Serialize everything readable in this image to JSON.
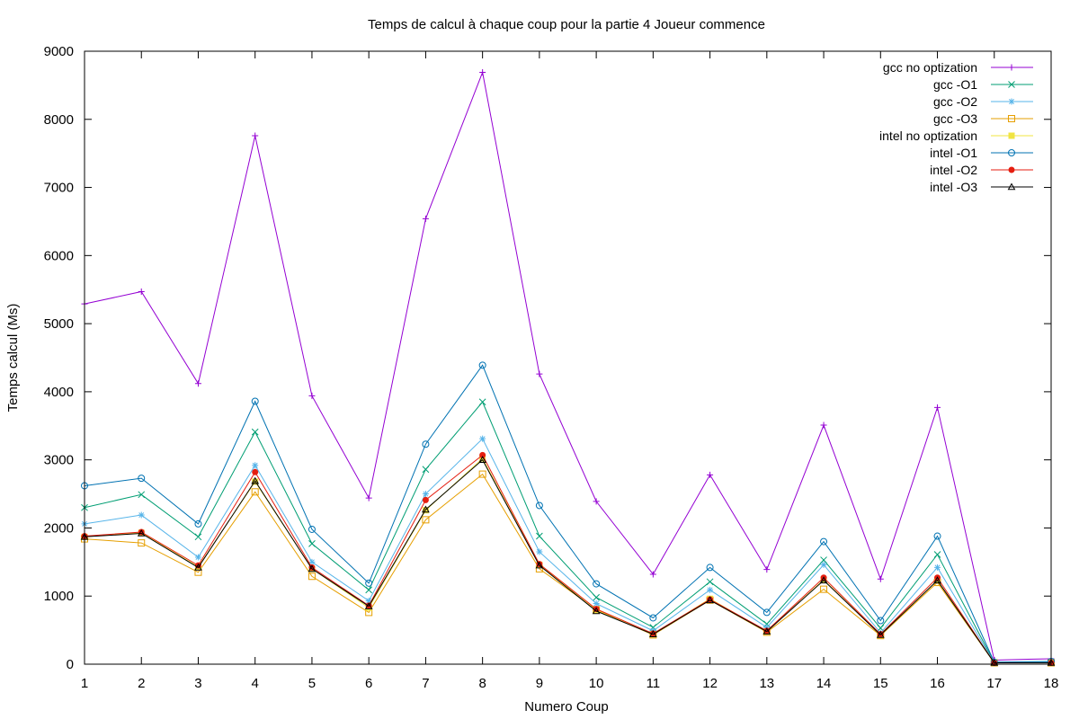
{
  "chart_data": {
    "type": "line",
    "title": "Temps de calcul à chaque coup pour la partie 4 Joueur commence",
    "xlabel": "Numero Coup",
    "ylabel": "Temps calcul (Ms)",
    "xlim": [
      1,
      18
    ],
    "ylim": [
      0,
      9000
    ],
    "x": [
      1,
      2,
      3,
      4,
      5,
      6,
      7,
      8,
      9,
      10,
      11,
      12,
      13,
      14,
      15,
      16,
      17,
      18
    ],
    "yticks": [
      0,
      1000,
      2000,
      3000,
      4000,
      5000,
      6000,
      7000,
      8000,
      9000
    ],
    "grid": false,
    "legend_position": "top-right",
    "series": [
      {
        "name": "gcc no optization",
        "color": "#9400d3",
        "marker": "plus",
        "values": [
          5290,
          5470,
          4120,
          7760,
          3940,
          2440,
          6540,
          8690,
          4260,
          2390,
          1320,
          2780,
          1390,
          3510,
          1250,
          3770,
          60,
          80
        ]
      },
      {
        "name": "gcc -O1",
        "color": "#009e73",
        "marker": "cross",
        "values": [
          2300,
          2490,
          1870,
          3410,
          1770,
          1090,
          2860,
          3850,
          1880,
          980,
          540,
          1210,
          590,
          1530,
          530,
          1610,
          25,
          30
        ]
      },
      {
        "name": "gcc -O2",
        "color": "#56b4e9",
        "marker": "asterisk",
        "values": [
          2060,
          2190,
          1570,
          2920,
          1500,
          930,
          2500,
          3310,
          1650,
          890,
          490,
          1090,
          540,
          1460,
          460,
          1420,
          22,
          25
        ]
      },
      {
        "name": "gcc -O3",
        "color": "#e69f00",
        "marker": "square",
        "values": [
          1840,
          1780,
          1350,
          2530,
          1290,
          760,
          2120,
          2790,
          1400,
          800,
          430,
          940,
          470,
          1100,
          420,
          1200,
          20,
          20
        ]
      },
      {
        "name": "intel no optization",
        "color": "#f0e442",
        "marker": "filled-square",
        "values": [
          1870,
          1930,
          1430,
          2680,
          1400,
          830,
          2260,
          3020,
          1460,
          790,
          440,
          960,
          480,
          1240,
          430,
          1230,
          20,
          20
        ]
      },
      {
        "name": "intel -O1",
        "color": "#0072b2",
        "marker": "circle",
        "values": [
          2620,
          2730,
          2060,
          3860,
          1980,
          1190,
          3230,
          4390,
          2330,
          1180,
          680,
          1420,
          760,
          1800,
          640,
          1880,
          30,
          40
        ]
      },
      {
        "name": "intel -O2",
        "color": "#e51e10",
        "marker": "filled-circle",
        "values": [
          1880,
          1940,
          1450,
          2820,
          1420,
          860,
          2410,
          3070,
          1470,
          810,
          450,
          950,
          490,
          1270,
          440,
          1270,
          20,
          20
        ]
      },
      {
        "name": "intel -O3",
        "color": "#000000",
        "marker": "triangle",
        "values": [
          1870,
          1920,
          1420,
          2690,
          1400,
          850,
          2270,
          3000,
          1450,
          780,
          440,
          940,
          480,
          1230,
          430,
          1230,
          20,
          20
        ]
      }
    ]
  }
}
